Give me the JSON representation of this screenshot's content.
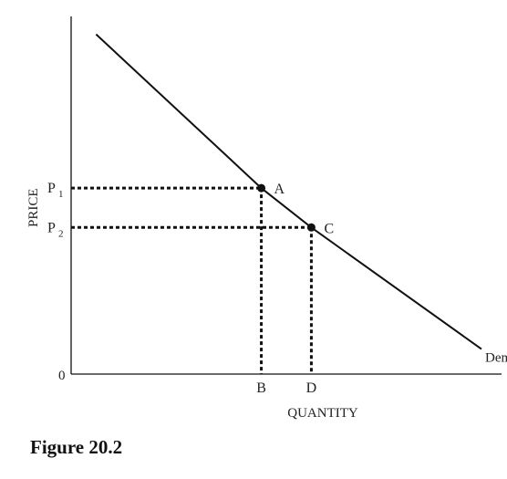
{
  "figure": {
    "caption": "Figure 20.2"
  },
  "chart_data": {
    "type": "line",
    "xlabel": "QUANTITY",
    "ylabel": "PRICE",
    "origin_label": "0",
    "x_ticks": [
      "B",
      "D"
    ],
    "y_ticks": [
      {
        "label": "P",
        "sub": "1"
      },
      {
        "label": "P",
        "sub": "2"
      }
    ],
    "series": [
      {
        "name": "Demand",
        "points": [
          {
            "x": 0.5,
            "y": 9.5
          },
          {
            "x": 3.8,
            "y": 5.2
          },
          {
            "x": 4.8,
            "y": 4.1
          },
          {
            "x": 8.2,
            "y": 0.7
          }
        ]
      }
    ],
    "points": [
      {
        "label": "A",
        "x": 3.8,
        "y": 5.2
      },
      {
        "label": "C",
        "x": 4.8,
        "y": 4.1
      }
    ],
    "xlim": [
      0,
      8.6
    ],
    "ylim": [
      0,
      10
    ],
    "grid": false,
    "colors": {
      "line": "#111111",
      "text": "#222222"
    }
  }
}
